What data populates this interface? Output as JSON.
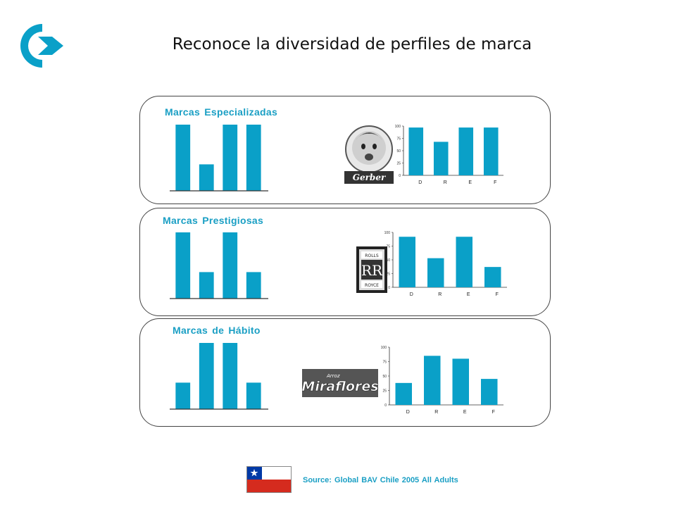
{
  "title": "Reconoce la diversidad de perfiles de marca",
  "source": "Source: Global BAV Chile 2005 All Adults",
  "colors": {
    "bar": "#0aa0c8",
    "accent": "#1a9fc4",
    "axis": "#333333"
  },
  "icons": {
    "nav": "arrow-right-circle-icon",
    "flag": "chile-flag-icon"
  },
  "brands": {
    "especializadas": "Gerber",
    "prestigiosas_top": "ROLLS",
    "prestigiosas_mid": "RR",
    "prestigiosas_bottom": "ROYCE",
    "habito_small": "Arroz",
    "habito": "Miraflores"
  },
  "chart_data": [
    {
      "type": "bar",
      "title": "Marcas Especializadas",
      "categories": [
        "D",
        "R",
        "E",
        "F"
      ],
      "values": [
        100,
        40,
        100,
        100
      ],
      "ylim": [
        0,
        100
      ]
    },
    {
      "type": "bar",
      "title": "",
      "categories": [
        "D",
        "R",
        "E",
        "F"
      ],
      "values": [
        97,
        68,
        97,
        97
      ],
      "ylim": [
        0,
        100
      ],
      "yticks": [
        "0",
        "25",
        "50",
        "75",
        "100"
      ]
    },
    {
      "type": "bar",
      "title": "Marcas Prestigiosas",
      "categories": [
        "D",
        "R",
        "E",
        "F"
      ],
      "values": [
        100,
        40,
        100,
        40
      ],
      "ylim": [
        0,
        100
      ]
    },
    {
      "type": "bar",
      "title": "",
      "categories": [
        "D",
        "R",
        "E",
        "F"
      ],
      "values": [
        92,
        53,
        92,
        37
      ],
      "ylim": [
        0,
        100
      ],
      "yticks": [
        "0",
        "25",
        "50",
        "75",
        "100"
      ]
    },
    {
      "type": "bar",
      "title": "Marcas de Hábito",
      "categories": [
        "D",
        "R",
        "E",
        "F"
      ],
      "values": [
        40,
        100,
        100,
        40
      ],
      "ylim": [
        0,
        100
      ]
    },
    {
      "type": "bar",
      "title": "",
      "categories": [
        "D",
        "R",
        "E",
        "F"
      ],
      "values": [
        38,
        85,
        80,
        45
      ],
      "ylim": [
        0,
        100
      ],
      "yticks": [
        "0",
        "25",
        "50",
        "75",
        "100"
      ]
    }
  ]
}
